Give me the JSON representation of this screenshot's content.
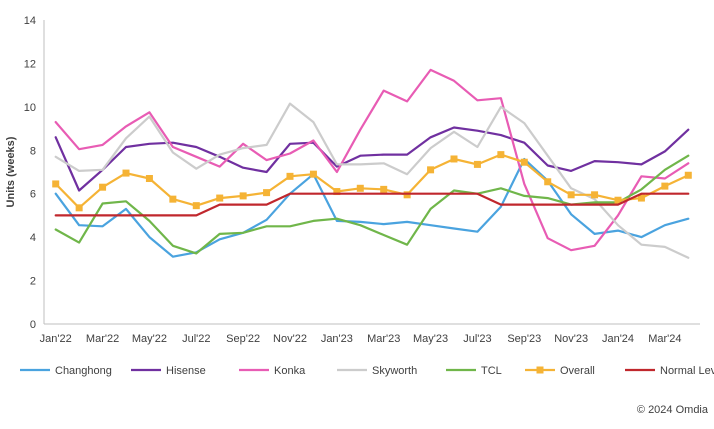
{
  "chart_data": {
    "type": "line",
    "title": "",
    "xlabel": "",
    "ylabel": "Units (weeks)",
    "ylim": [
      0,
      14
    ],
    "yticks": [
      0,
      2,
      4,
      6,
      8,
      10,
      12,
      14
    ],
    "grid": false,
    "legend_position": "bottom",
    "categories": [
      "Jan'22",
      "Feb'22",
      "Mar'22",
      "Apr'22",
      "May'22",
      "Jun'22",
      "Jul'22",
      "Aug'22",
      "Sep'22",
      "Oct'22",
      "Nov'22",
      "Dec'22",
      "Jan'23",
      "Feb'23",
      "Mar'23",
      "Apr'23",
      "May'23",
      "Jun'23",
      "Jul'23",
      "Aug'23",
      "Sep'23",
      "Oct'23",
      "Nov'23",
      "Dec'23",
      "Jan'24",
      "Feb'24",
      "Mar'24",
      "Apr'24"
    ],
    "x_tick_labels": [
      "Jan'22",
      "Mar'22",
      "May'22",
      "Jul'22",
      "Sep'22",
      "Nov'22",
      "Jan'23",
      "Mar'23",
      "May'23",
      "Jul'23",
      "Sep'23",
      "Nov'23",
      "Jan'24",
      "Mar'24"
    ],
    "series": [
      {
        "name": "Changhong",
        "color": "#4aa3df",
        "marker": "none",
        "values": [
          6.0,
          4.55,
          4.5,
          5.3,
          4.0,
          3.1,
          3.3,
          3.9,
          4.2,
          4.8,
          6.0,
          6.9,
          4.75,
          4.7,
          4.6,
          4.7,
          4.55,
          4.4,
          4.25,
          5.4,
          7.6,
          6.6,
          5.05,
          4.15,
          4.3,
          4.0,
          4.55,
          4.85
        ]
      },
      {
        "name": "Hisense",
        "color": "#7030a0",
        "marker": "none",
        "values": [
          8.6,
          6.15,
          7.1,
          8.15,
          8.3,
          8.35,
          8.15,
          7.7,
          7.2,
          7.0,
          8.3,
          8.35,
          7.25,
          7.75,
          7.8,
          7.8,
          8.6,
          9.05,
          8.9,
          8.7,
          8.35,
          7.3,
          7.05,
          7.5,
          7.45,
          7.35,
          7.95,
          8.95
        ]
      },
      {
        "name": "Konka",
        "color": "#e85cb4",
        "marker": "none",
        "values": [
          9.3,
          8.05,
          8.25,
          9.1,
          9.75,
          8.15,
          7.7,
          7.25,
          8.3,
          7.55,
          7.85,
          8.45,
          7.0,
          8.95,
          10.75,
          10.25,
          11.7,
          11.2,
          10.3,
          10.4,
          6.45,
          3.95,
          3.4,
          3.6,
          5.0,
          6.8,
          6.7,
          7.4
        ]
      },
      {
        "name": "Skyworth",
        "color": "#cccccc",
        "marker": "none",
        "values": [
          7.7,
          7.05,
          7.1,
          8.55,
          9.55,
          7.9,
          7.15,
          7.8,
          8.1,
          8.25,
          10.15,
          9.3,
          7.35,
          7.35,
          7.4,
          6.9,
          8.1,
          8.85,
          8.15,
          10.0,
          9.25,
          7.75,
          6.25,
          5.75,
          4.55,
          3.65,
          3.55,
          3.05
        ]
      },
      {
        "name": "TCL",
        "color": "#70b64a",
        "marker": "none",
        "values": [
          4.35,
          3.75,
          5.55,
          5.65,
          4.75,
          3.6,
          3.25,
          4.15,
          4.2,
          4.5,
          4.5,
          4.75,
          4.85,
          4.55,
          4.1,
          3.65,
          5.3,
          6.15,
          6.0,
          6.25,
          5.9,
          5.8,
          5.5,
          5.6,
          5.6,
          6.2,
          7.1,
          7.75
        ]
      },
      {
        "name": "Overall",
        "color": "#f5b335",
        "marker": "square",
        "values": [
          6.45,
          5.35,
          6.3,
          6.95,
          6.7,
          5.75,
          5.45,
          5.8,
          5.9,
          6.05,
          6.8,
          6.9,
          6.1,
          6.25,
          6.2,
          5.95,
          7.1,
          7.6,
          7.35,
          7.8,
          7.45,
          6.55,
          5.95,
          5.95,
          5.7,
          5.8,
          6.35,
          6.85
        ]
      },
      {
        "name": "Normal Level",
        "color": "#c0272d",
        "marker": "none",
        "values": [
          5.0,
          5.0,
          5.0,
          5.0,
          5.0,
          5.0,
          5.0,
          5.5,
          5.5,
          5.5,
          6.0,
          6.0,
          6.0,
          6.0,
          6.0,
          6.0,
          6.0,
          6.0,
          6.0,
          5.5,
          5.5,
          5.5,
          5.5,
          5.5,
          5.5,
          6.0,
          6.0,
          6.0
        ]
      }
    ]
  },
  "footer": {
    "copyright": "© 2024 Omdia"
  }
}
